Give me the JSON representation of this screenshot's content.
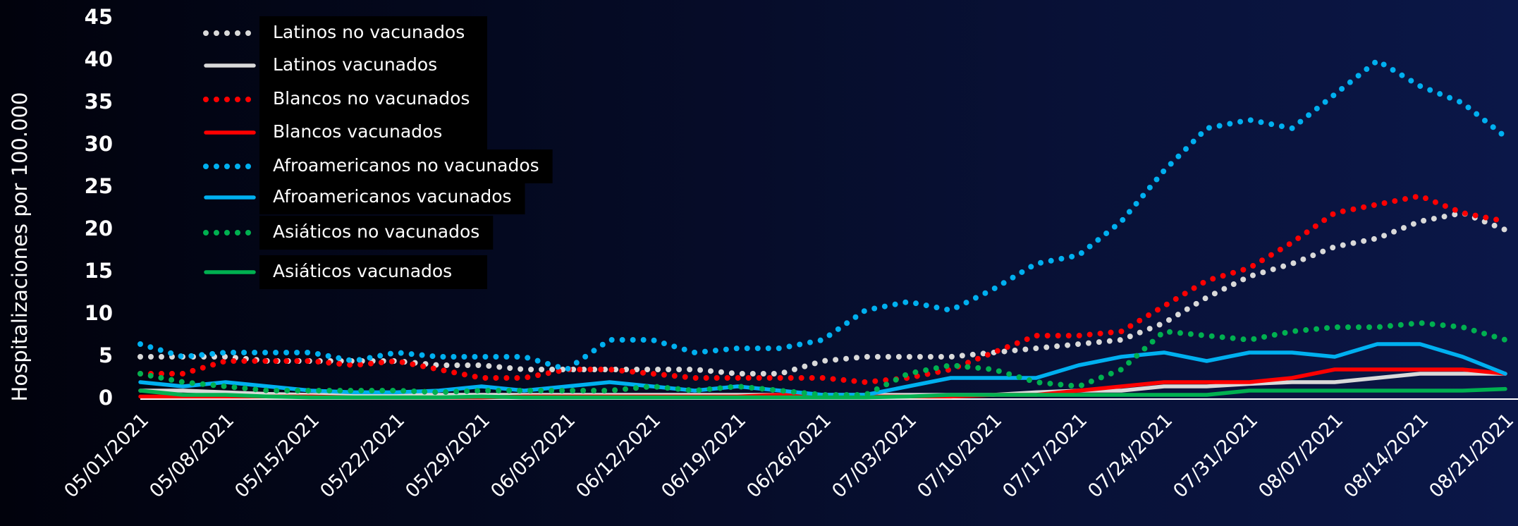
{
  "chart_data": {
    "type": "line",
    "y_label": "Hospitalizaciones por 100.000",
    "categories": [
      "05/01/2021",
      null,
      "05/08/2021",
      null,
      "05/15/2021",
      null,
      "05/22/2021",
      null,
      "05/29/2021",
      null,
      "06/05/2021",
      null,
      "06/12/2021",
      null,
      "06/19/2021",
      null,
      "06/26/2021",
      null,
      "07/03/2021",
      null,
      "07/10/2021",
      null,
      "07/17/2021",
      null,
      "07/24/2021",
      null,
      "07/31/2021",
      null,
      "08/07/2021",
      null,
      "08/14/2021",
      null,
      "08/21/2021"
    ],
    "ylim": [
      0,
      45
    ],
    "yticks": [
      0,
      5,
      10,
      15,
      20,
      25,
      30,
      35,
      40,
      45
    ],
    "grid": false,
    "legend": "top-left",
    "series": [
      {
        "name": "Latinos no vacunados",
        "color": "#d9d9d9",
        "style": "dotted",
        "values": [
          5,
          5,
          5,
          4.5,
          4.5,
          4.5,
          4.5,
          4,
          4,
          3.5,
          3.5,
          3.5,
          3.5,
          3.5,
          3,
          3,
          4.5,
          5,
          5,
          5,
          5.5,
          6,
          6.5,
          7,
          9,
          12,
          14.5,
          16,
          18,
          19,
          21,
          22,
          20
        ]
      },
      {
        "name": "Latinos vacunados",
        "color": "#d9d9d9",
        "style": "solid",
        "values": [
          1,
          1,
          0.8,
          0.6,
          0.5,
          0.5,
          0.5,
          0.5,
          0.5,
          0.5,
          0.5,
          0.5,
          0.5,
          0.5,
          0.5,
          0.5,
          0.5,
          0.5,
          0.5,
          0.5,
          0.5,
          0.8,
          1,
          1,
          1.5,
          1.5,
          1.8,
          2,
          2,
          2.5,
          3,
          3,
          3
        ]
      },
      {
        "name": "Blancos no vacunados",
        "color": "#ff0000",
        "style": "dotted",
        "values": [
          3,
          3,
          4.5,
          4.5,
          4.5,
          4,
          4.5,
          3.5,
          2.5,
          2.5,
          3.5,
          3.5,
          3,
          2.5,
          2.5,
          2.5,
          2.5,
          2,
          2.5,
          3.5,
          5.5,
          7.5,
          7.5,
          8,
          11,
          14,
          15.5,
          18.5,
          22,
          23,
          24,
          22,
          21
        ]
      },
      {
        "name": "Blancos vacunados",
        "color": "#ff0000",
        "style": "solid",
        "values": [
          0.3,
          0.3,
          0.3,
          0.3,
          0.3,
          0.2,
          0.2,
          0.2,
          0.2,
          0.3,
          0.3,
          0.3,
          0.3,
          0.3,
          0.3,
          0.5,
          0.5,
          0.3,
          0.3,
          0.3,
          0.5,
          0.5,
          1,
          1.5,
          2,
          2,
          2,
          2.5,
          3.5,
          3.5,
          3.5,
          3.5,
          3
        ]
      },
      {
        "name": "Afroamericanos no vacunados",
        "color": "#00b0f0",
        "style": "dotted",
        "values": [
          6.5,
          5,
          5.5,
          5.5,
          5.5,
          4.5,
          5.5,
          5,
          5,
          5,
          3.5,
          7,
          7,
          5.5,
          6,
          6,
          7,
          10.5,
          11.5,
          10.5,
          13,
          16,
          17,
          21,
          27,
          32,
          33,
          32,
          36,
          40,
          37,
          35,
          31
        ]
      },
      {
        "name": "Afroamericanos vacunados",
        "color": "#00b0f0",
        "style": "solid",
        "values": [
          2,
          1.5,
          2,
          1.5,
          1,
          0.8,
          0.8,
          1,
          1.5,
          1,
          1.5,
          2,
          1.5,
          1,
          1.5,
          1,
          0.5,
          0.5,
          1.5,
          2.5,
          2.5,
          2.5,
          4,
          5,
          5.5,
          4.5,
          5.5,
          5.5,
          5,
          6.5,
          6.5,
          5,
          3
        ]
      },
      {
        "name": "Asiáticos no vacunados",
        "color": "#00b050",
        "style": "dotted",
        "values": [
          3,
          2,
          1.5,
          1,
          1,
          1,
          1,
          0.8,
          1,
          1,
          1,
          1,
          1.5,
          1,
          1.5,
          1,
          0.5,
          0.5,
          3,
          4,
          3.5,
          2,
          1.5,
          3.5,
          8,
          7.5,
          7,
          8,
          8.5,
          8.5,
          9,
          8.5,
          7
        ]
      },
      {
        "name": "Asiáticos vacunados",
        "color": "#00b050",
        "style": "solid",
        "values": [
          1,
          0.5,
          0.5,
          0.3,
          0.2,
          0.2,
          0.2,
          0.2,
          0.3,
          0.2,
          0.2,
          0.2,
          0.2,
          0.2,
          0.2,
          0.2,
          0.2,
          0.2,
          0.3,
          0.5,
          0.5,
          0.5,
          0.5,
          0.5,
          0.5,
          0.5,
          1,
          1,
          1,
          1,
          1,
          1,
          1.2
        ]
      }
    ]
  }
}
